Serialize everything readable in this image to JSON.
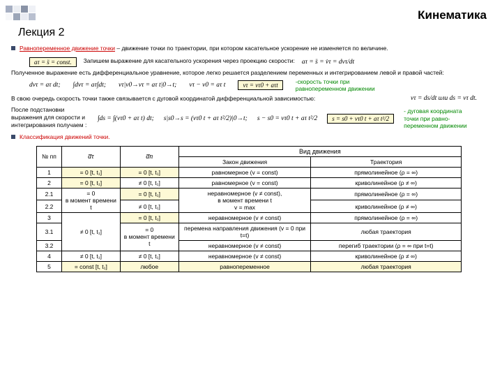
{
  "header": {
    "title": "Кинематика",
    "lecture": "Лекция 2"
  },
  "bullet1": {
    "term": "Равнопеременное движение точки",
    "text": " – движение точки по траектории, при котором касательное ускорение не изменяется по величине."
  },
  "formulas": {
    "f1": "aτ = s̈ = const.",
    "before_f2": "Запишем выражение для касательного ускорения через проекцию скорости:",
    "f2": "aτ = s̈ = v̇τ = dvτ/dt"
  },
  "para2": "Полученное выражение есть дифференциальное уравнение, которое легко решается разделением переменных и интегрированием левой и правой частей:",
  "strip1": {
    "a": "dvτ = aτ dt;",
    "b": "∫dvτ = aτ∫dt;",
    "c": "vτ|v0→vτ = aτ t|0→t;",
    "d": "vτ − v0 = aτ t",
    "boxed": "vτ = vτ0 + aτt",
    "note": "-скорость точки при равнопеременном движении"
  },
  "para3": "В свою очередь скорость точки также связывается с дуговой координатой дифференциальной зависимостью:",
  "formula_ds": "vτ = ds/dt  или  ds = vτ dt.",
  "para4": "После подстановки выражения для скорости и интегрирования получаем :",
  "strip2": {
    "a": "∫ds = ∫(vτ0 + aτ t) dt;",
    "b": "s|s0→s = (vτ0 t + aτ t²/2)|0→t;",
    "c": "s − s0 = vτ0 t + aτ t²/2",
    "boxed": "s = s0 + vτ0 t + aτ t²/2",
    "note": "- дуговая координата точки при равно-переменном движении"
  },
  "bullet2": "Классификация движений точки.",
  "table": {
    "headers": {
      "no": "№ пп",
      "at": "a̅τ",
      "an": "a̅n",
      "vid": "Вид движения",
      "law": "Закон движения",
      "traj": "Траектория"
    },
    "col_widths": [
      "36px",
      "84px",
      "84px",
      "190px",
      "216px"
    ],
    "rows": [
      {
        "n": "1",
        "at": "= 0  [t, t₁]",
        "an": "= 0 [t, t₁]",
        "law": "равномерное (v = const)",
        "traj": "прямолинейное (ρ = ∞)",
        "hl": [
          "at",
          "an"
        ]
      },
      {
        "n": "2",
        "at": "= 0  [t, t₁]",
        "an": "≠ 0 [t, t₁]",
        "law": "равномерное (v = const)",
        "traj": "криволинейное (ρ ≠ ∞)",
        "hl": [
          "at"
        ]
      },
      {
        "n": "2.1",
        "at": "= 0\nв момент времени t",
        "an": "= 0 [t, t₁]",
        "law": "неравномерное (v ≠ const),\nв момент времени t\nv = max",
        "traj": "прямолинейное (ρ = ∞)",
        "rowspan_at": 2,
        "hl": [
          "an"
        ]
      },
      {
        "n": "2.2",
        "an": "≠ 0 [t, t₁]",
        "traj": "криволинейное (ρ ≠ ∞)"
      },
      {
        "n": "3",
        "at": "≠ 0 [t, t₁]",
        "an": "= 0 [t, t₁]",
        "law": "неравномерное (v ≠ const)",
        "traj": "прямолинейное (ρ = ∞)",
        "rowspan_at": 3,
        "hl": [
          "an"
        ]
      },
      {
        "n": "3.1",
        "an": "= 0\nв момент времени t",
        "law": "перемена направления движения (v = 0 при t=t)",
        "traj": "любая траектория",
        "rowspan_an": 2
      },
      {
        "n": "3.2",
        "law": "неравномерное (v ≠ const)",
        "traj": "перегиб траектории (ρ = ∞ при t=t)"
      },
      {
        "n": "4",
        "at": "≠ 0 [t, t₁]",
        "an": "≠ 0 [t, t₁]",
        "law": "неравномерное (v ≠ const)",
        "traj": "криволинейное (ρ ≠ ∞)"
      },
      {
        "n": "5",
        "at": "= const  [t, t₁]",
        "an": "любое",
        "law": "равнопеременное",
        "traj": "любая траектория",
        "hl": [
          "at",
          "an",
          "law",
          "traj"
        ]
      }
    ]
  }
}
